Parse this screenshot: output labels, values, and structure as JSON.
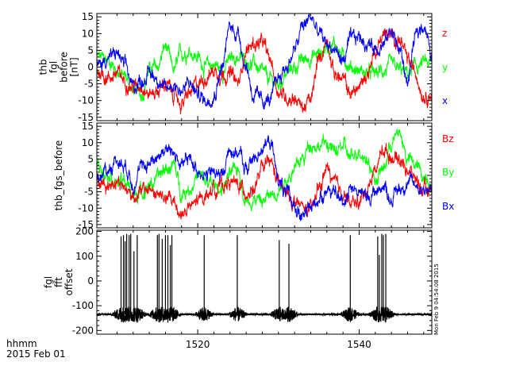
{
  "chart_data": {
    "type": "line",
    "x_ticks": [
      1520,
      1540
    ],
    "x_tick_labels": [
      "1520",
      "1540"
    ],
    "x_range": [
      1507.5,
      1549
    ],
    "time_label": "hhmm",
    "date_label": "2015 Feb 01",
    "stamp": "Mon Feb  9 04:54:08 2015",
    "colors": {
      "x": "#0000ff",
      "y": "#00ff00",
      "z": "#ff0000",
      "black": "#000000"
    },
    "panels": [
      {
        "ylabel_lines": [
          "thb",
          "fgl",
          "before",
          "[nT]"
        ],
        "ylim": [
          -16,
          16
        ],
        "yticks": [
          -15,
          -10,
          -5,
          0,
          5,
          10,
          15
        ],
        "ytick_labels": [
          "-15",
          "-10",
          "-5",
          "0",
          "5",
          "10",
          "15"
        ],
        "legend": [
          "z",
          "y",
          "x"
        ],
        "series": [
          {
            "name": "y",
            "color": "#00ff00",
            "x": [
              1507.5,
              1509,
              1510,
              1511,
              1512,
              1513,
              1514,
              1515,
              1516,
              1517,
              1518,
              1519,
              1520,
              1521,
              1522,
              1523,
              1524,
              1525,
              1526,
              1527,
              1528,
              1529,
              1530,
              1531,
              1532,
              1533,
              1534,
              1535,
              1536,
              1537,
              1538,
              1539,
              1540,
              1541,
              1542,
              1543,
              1544,
              1545,
              1546,
              1547,
              1548,
              1549
            ],
            "y": [
              3,
              2,
              -1,
              -3,
              -7,
              -8,
              -1,
              0,
              6,
              -1,
              4,
              5,
              3,
              0,
              1,
              -1,
              2,
              3,
              2,
              1,
              -2,
              -4,
              -5,
              -2,
              0,
              2,
              3,
              4,
              6,
              7,
              3,
              0,
              -1,
              -2,
              -2,
              -1,
              0,
              -1,
              -2,
              0,
              1,
              1
            ]
          },
          {
            "name": "z",
            "color": "#ff0000",
            "x": [
              1507.5,
              1509,
              1510,
              1511,
              1512,
              1513,
              1514,
              1515,
              1516,
              1517,
              1518,
              1519,
              1520,
              1521,
              1522,
              1523,
              1524,
              1525,
              1526,
              1527,
              1528,
              1529,
              1530,
              1531,
              1532,
              1533,
              1534,
              1535,
              1536,
              1537,
              1538,
              1539,
              1540,
              1541,
              1542,
              1543,
              1544,
              1545,
              1546,
              1547,
              1548,
              1549
            ],
            "y": [
              -1,
              -3,
              -2,
              -4,
              -6,
              -5,
              -8,
              -7,
              -5,
              -8,
              -11,
              -8,
              -5,
              -3,
              -1,
              -2,
              -2,
              -5,
              5,
              7,
              7,
              2,
              -7,
              -9,
              -9,
              -12,
              -10,
              2,
              8,
              -2,
              -4,
              -8,
              -6,
              -2,
              5,
              10,
              9,
              8,
              2,
              -2,
              -8,
              -8
            ]
          },
          {
            "name": "x",
            "color": "#0000ff",
            "x": [
              1507.5,
              1509,
              1510,
              1511,
              1512,
              1513,
              1514,
              1515,
              1516,
              1517,
              1518,
              1519,
              1520,
              1521,
              1522,
              1523,
              1524,
              1525,
              1526,
              1527,
              1528,
              1529,
              1530,
              1531,
              1532,
              1533,
              1534,
              1535,
              1536,
              1537,
              1538,
              1539,
              1540,
              1541,
              1542,
              1543,
              1544,
              1545,
              1546,
              1547,
              1548,
              1549
            ],
            "y": [
              0,
              3,
              4,
              0,
              -6,
              -4,
              -2,
              -3,
              -7,
              -5,
              -7,
              -5,
              -8,
              -10,
              -8,
              0,
              12,
              10,
              0,
              -9,
              -10,
              -10,
              -3,
              0,
              5,
              12,
              15,
              10,
              7,
              5,
              2,
              8,
              9,
              7,
              6,
              7,
              11,
              5,
              -4,
              9,
              13,
              3
            ]
          }
        ]
      },
      {
        "ylabel_lines": [
          "thb_fgs_before"
        ],
        "ylim": [
          -16,
          16
        ],
        "yticks": [
          -15,
          -10,
          -5,
          0,
          5,
          10,
          15
        ],
        "ytick_labels": [
          "-15",
          "-10",
          "-5",
          "0",
          "5",
          "10",
          "15"
        ],
        "legend": [
          "Bz",
          "By",
          "Bx"
        ],
        "series": [
          {
            "name": "By",
            "color": "#00ff00",
            "x": [
              1507.5,
              1509,
              1510,
              1511,
              1512,
              1513,
              1514,
              1515,
              1516,
              1517,
              1518,
              1519,
              1520,
              1521,
              1522,
              1523,
              1524,
              1525,
              1526,
              1527,
              1528,
              1529,
              1530,
              1531,
              1532,
              1533,
              1534,
              1535,
              1536,
              1537,
              1538,
              1539,
              1540,
              1541,
              1542,
              1543,
              1544,
              1545,
              1546,
              1547,
              1548,
              1549
            ],
            "y": [
              3,
              1,
              -2,
              -2,
              -6,
              -5,
              -3,
              -1,
              2,
              3,
              -5,
              -4,
              0,
              -2,
              -3,
              -4,
              0,
              2,
              -8,
              -7,
              -8,
              -6,
              -4,
              -1,
              2,
              5,
              10,
              9,
              10,
              7,
              9,
              5,
              8,
              5,
              -1,
              2,
              10,
              13,
              5,
              3,
              0,
              -2
            ]
          },
          {
            "name": "Bz",
            "color": "#ff0000",
            "x": [
              1507.5,
              1509,
              1510,
              1511,
              1512,
              1513,
              1514,
              1515,
              1516,
              1517,
              1518,
              1519,
              1520,
              1521,
              1522,
              1523,
              1524,
              1525,
              1526,
              1527,
              1528,
              1529,
              1530,
              1531,
              1532,
              1533,
              1534,
              1535,
              1536,
              1537,
              1538,
              1539,
              1540,
              1541,
              1542,
              1543,
              1544,
              1545,
              1546,
              1547,
              1548,
              1549
            ],
            "y": [
              -2,
              -3,
              -1,
              -4,
              -6,
              -5,
              -4,
              -6,
              -7,
              -8,
              -12,
              -10,
              -8,
              -6,
              -4,
              -3,
              -2,
              -3,
              -5,
              -4,
              2,
              4,
              -2,
              -6,
              -8,
              -10,
              -11,
              -4,
              2,
              -3,
              -5,
              -9,
              -8,
              -4,
              2,
              8,
              6,
              5,
              2,
              -1,
              -5,
              -4
            ]
          },
          {
            "name": "Bx",
            "color": "#0000ff",
            "x": [
              1507.5,
              1509,
              1510,
              1511,
              1512,
              1513,
              1514,
              1515,
              1516,
              1517,
              1518,
              1519,
              1520,
              1521,
              1522,
              1523,
              1524,
              1525,
              1526,
              1527,
              1528,
              1529,
              1530,
              1531,
              1532,
              1533,
              1534,
              1535,
              1536,
              1537,
              1538,
              1539,
              1540,
              1541,
              1542,
              1543,
              1544,
              1545,
              1546,
              1547,
              1548,
              1549
            ],
            "y": [
              -1,
              2,
              5,
              3,
              -2,
              2,
              4,
              6,
              8,
              7,
              3,
              5,
              2,
              0,
              1,
              0,
              8,
              7,
              2,
              5,
              9,
              10,
              -1,
              -6,
              -9,
              -13,
              -10,
              -7,
              -4,
              -6,
              -8,
              -3,
              -5,
              -7,
              -5,
              -3,
              -7,
              -4,
              -2,
              -3,
              -4,
              -4
            ]
          }
        ]
      },
      {
        "ylabel_lines": [
          "fgl",
          "fft",
          "offset"
        ],
        "ylim": [
          -215,
          205
        ],
        "yticks": [
          -200,
          -100,
          0,
          100,
          200
        ],
        "ytick_labels": [
          "-200",
          "-100",
          "0",
          "100",
          "200"
        ],
        "legend": [],
        "baseline": -135,
        "spike_times": [
          1510.5,
          1510.8,
          1511.0,
          1511.2,
          1511.5,
          1511.7,
          1512.1,
          1512.5,
          1515.0,
          1515.2,
          1515.6,
          1516.0,
          1516.3,
          1516.6,
          1516.8,
          1520.8,
          1524.9,
          1530.1,
          1531.3,
          1538.9,
          1542.3,
          1542.5,
          1542.8,
          1543.0,
          1543.3
        ],
        "spike_peaks": [
          180,
          185,
          160,
          190,
          185,
          190,
          120,
          185,
          185,
          190,
          170,
          185,
          185,
          145,
          185,
          185,
          185,
          165,
          150,
          185,
          180,
          105,
          190,
          185,
          190
        ]
      }
    ]
  }
}
